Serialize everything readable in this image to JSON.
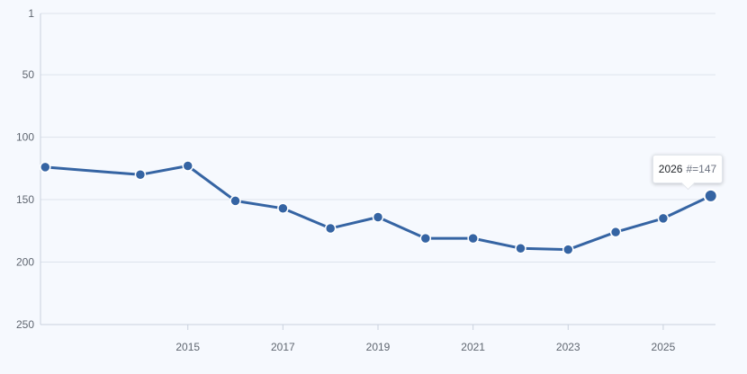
{
  "chart_data": {
    "type": "line",
    "x": [
      2012,
      2014,
      2015,
      2016,
      2017,
      2018,
      2019,
      2020,
      2021,
      2022,
      2023,
      2024,
      2025,
      2026
    ],
    "series": [
      {
        "values": [
          124,
          130,
          123,
          151,
          157,
          173,
          164,
          181,
          181,
          189,
          190,
          176,
          165,
          147
        ]
      }
    ],
    "y_axis": {
      "ticks": [
        1,
        50,
        100,
        150,
        200,
        250
      ],
      "inverted": true,
      "ylim": [
        1,
        250
      ]
    },
    "x_axis": {
      "ticks": [
        2015,
        2017,
        2019,
        2021,
        2023,
        2025
      ],
      "xlim": [
        2011.9,
        2026.1
      ]
    },
    "grid": true,
    "line_color": "#3564a3",
    "tooltip": {
      "year": "2026",
      "prefix": "#=",
      "value": "147"
    }
  }
}
